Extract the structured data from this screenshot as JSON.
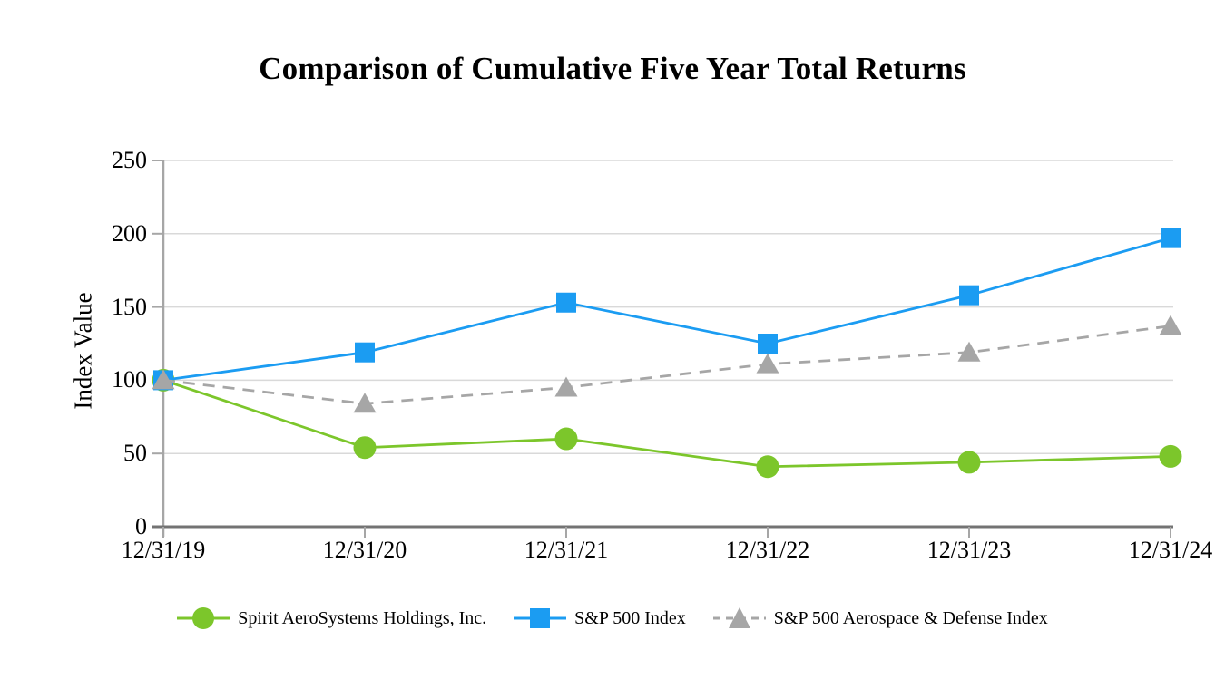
{
  "title": "Comparison of Cumulative Five Year Total Returns",
  "chart_data": {
    "type": "line",
    "title": "Comparison of Cumulative Five Year Total Returns",
    "xlabel": "",
    "ylabel": "Index Value",
    "categories": [
      "12/31/19",
      "12/31/20",
      "12/31/21",
      "12/31/22",
      "12/31/23",
      "12/31/24"
    ],
    "ylim": [
      0,
      250
    ],
    "yticks": [
      0,
      50,
      100,
      150,
      200,
      250
    ],
    "grid": "horizontal",
    "legend_position": "bottom",
    "series": [
      {
        "name": "Spirit AeroSystems Holdings, Inc.",
        "values": [
          100,
          54,
          60,
          41,
          44,
          48
        ],
        "color": "#7CC62B",
        "marker": "circle",
        "line_style": "solid"
      },
      {
        "name": "S&P 500 Index",
        "values": [
          100,
          119,
          153,
          125,
          158,
          197
        ],
        "color": "#1B9CF2",
        "marker": "square",
        "line_style": "solid"
      },
      {
        "name": "S&P 500 Aerospace & Defense Index",
        "values": [
          100,
          84,
          95,
          111,
          119,
          137
        ],
        "color": "#A6A6A6",
        "marker": "triangle",
        "line_style": "dashed"
      }
    ],
    "colors": {
      "axis": "#A6A6A6",
      "x_axis_line": "#737373",
      "gridline": "#D9D9D9",
      "text": "#000000",
      "background": "#FFFFFF"
    }
  }
}
